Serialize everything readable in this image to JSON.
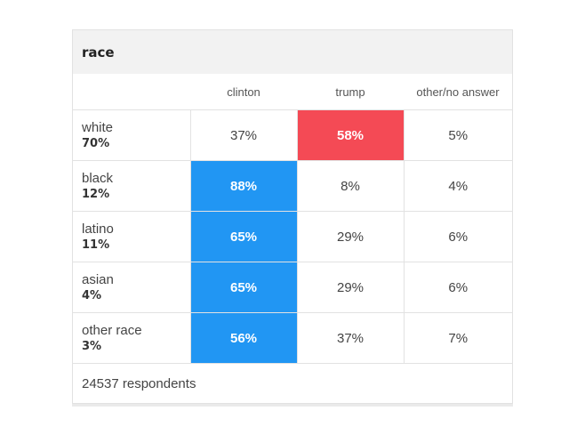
{
  "title": "race",
  "columns": [
    "clinton",
    "trump",
    "other/no answer"
  ],
  "footer": "24537 respondents",
  "colors": {
    "clinton": "#2196f3",
    "trump": "#f44a55"
  },
  "chart_data": {
    "type": "table",
    "title": "race",
    "columns": [
      "clinton",
      "trump",
      "other/no answer"
    ],
    "rows": [
      {
        "group": "white",
        "share": "70%",
        "values": [
          "37%",
          "58%",
          "5%"
        ],
        "winner": "trump"
      },
      {
        "group": "black",
        "share": "12%",
        "values": [
          "88%",
          "8%",
          "4%"
        ],
        "winner": "clinton"
      },
      {
        "group": "latino",
        "share": "11%",
        "values": [
          "65%",
          "29%",
          "6%"
        ],
        "winner": "clinton"
      },
      {
        "group": "asian",
        "share": "4%",
        "values": [
          "65%",
          "29%",
          "6%"
        ],
        "winner": "clinton"
      },
      {
        "group": "other race",
        "share": "3%",
        "values": [
          "56%",
          "37%",
          "7%"
        ],
        "winner": "clinton"
      }
    ],
    "respondents": "24537 respondents"
  }
}
